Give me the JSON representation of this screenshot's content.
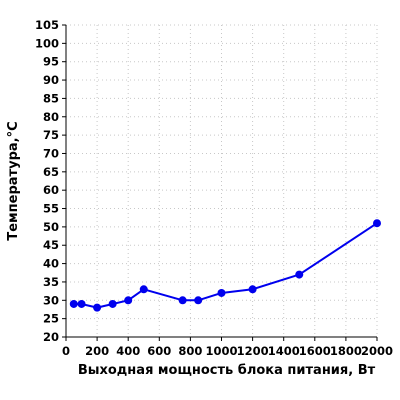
{
  "chart_data": {
    "type": "line",
    "title": "",
    "xlabel": "Выходная мощность блока питания, Вт",
    "ylabel": "Температура,°C",
    "xlim": [
      0,
      2000
    ],
    "ylim": [
      20,
      105
    ],
    "xticks": [
      0,
      200,
      400,
      600,
      800,
      1000,
      1200,
      1400,
      1600,
      1800,
      2000
    ],
    "yticks": [
      20,
      25,
      30,
      35,
      40,
      45,
      50,
      55,
      60,
      65,
      70,
      75,
      80,
      85,
      90,
      95,
      100,
      105
    ],
    "grid": true,
    "legend": "none",
    "colors": {
      "series": "#0000ee",
      "axis": "#000000",
      "grid": "#c8c8c8"
    },
    "series": [
      {
        "points": [
          {
            "x": 50,
            "y": 29
          },
          {
            "x": 100,
            "y": 29
          },
          {
            "x": 200,
            "y": 28
          },
          {
            "x": 300,
            "y": 29
          },
          {
            "x": 400,
            "y": 30
          },
          {
            "x": 500,
            "y": 33
          },
          {
            "x": 750,
            "y": 30
          },
          {
            "x": 850,
            "y": 30
          },
          {
            "x": 1000,
            "y": 32
          },
          {
            "x": 1200,
            "y": 33
          },
          {
            "x": 1500,
            "y": 37
          },
          {
            "x": 2000,
            "y": 51
          }
        ]
      }
    ]
  }
}
